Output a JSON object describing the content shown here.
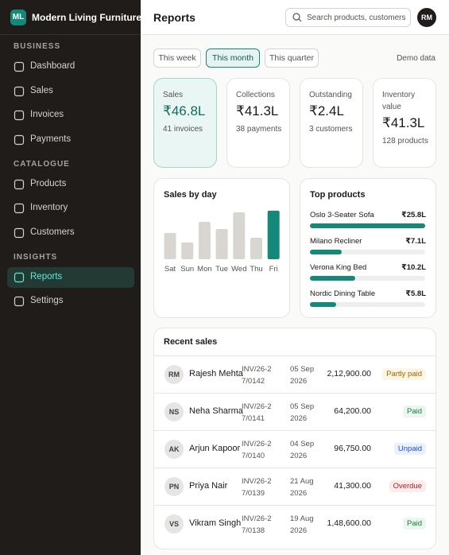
{
  "sidebar": {
    "logo": "ML",
    "brand": "Modern Living Furniture",
    "sections": [
      {
        "heading": "BUSINESS",
        "items": [
          {
            "label": "Dashboard"
          },
          {
            "label": "Sales"
          },
          {
            "label": "Invoices"
          },
          {
            "label": "Payments"
          }
        ]
      },
      {
        "heading": "CATALOGUE",
        "items": [
          {
            "label": "Products"
          },
          {
            "label": "Inventory"
          },
          {
            "label": "Customers"
          }
        ]
      },
      {
        "heading": "INSIGHTS",
        "items": [
          {
            "label": "Reports",
            "active": true
          },
          {
            "label": "Settings"
          }
        ]
      }
    ]
  },
  "header": {
    "title": "Reports",
    "search_placeholder": "Search products, customers",
    "avatar": "RM"
  },
  "filters": {
    "options": [
      {
        "label": "This week"
      },
      {
        "label": "This month",
        "selected": true
      },
      {
        "label": "This quarter"
      }
    ],
    "note": "Demo data"
  },
  "kpis": [
    {
      "label": "Sales",
      "value": "₹46.8L",
      "sub": "41 invoices",
      "highlight": true
    },
    {
      "label": "Collections",
      "value": "₹41.3L",
      "sub": "38 payments"
    },
    {
      "label": "Outstanding",
      "value": "₹2.4L",
      "sub": "3 customers"
    },
    {
      "label": "Inventory value",
      "value": "₹41.3L",
      "sub": "128 products"
    }
  ],
  "sales_by_day": {
    "title": "Sales by day",
    "categories": [
      "Sat",
      "Sun",
      "Mon",
      "Tue",
      "Wed",
      "Thu",
      "Fri"
    ],
    "values": [
      33,
      21,
      47,
      38,
      59,
      27,
      61
    ],
    "colors": [
      "#d9d5d0",
      "#d9d5d0",
      "#d9d5d0",
      "#d9d5d0",
      "#d9d5d0",
      "#d9d5d0",
      "#14897a"
    ]
  },
  "top_products": {
    "title": "Top products",
    "color": "#14897a",
    "items": [
      {
        "name": "Oslo 3-Seater Sofa",
        "value": {
          "value": 25.8,
          "label": "₹25.8L"
        }
      },
      {
        "name": "Milano Recliner",
        "value": {
          "value": 7.1,
          "label": "₹7.1L"
        }
      },
      {
        "name": "Verona King Bed",
        "value": {
          "value": 10.2,
          "label": "₹10.2L"
        }
      },
      {
        "name": "Nordic Dining Table",
        "value": {
          "value": 5.8,
          "label": "₹5.8L"
        }
      }
    ]
  },
  "recent_sales": {
    "title": "Recent sales",
    "rows": [
      {
        "initials": "RM",
        "name": "Rajesh Mehta",
        "invoice": "INV/26-27/0142",
        "date": "05 Sep 2026",
        "amount": "2,12,900.00",
        "status": "Partly paid",
        "status_color": "#a16207",
        "status_bg": "#fdf6e3"
      },
      {
        "initials": "NS",
        "name": "Neha Sharma",
        "invoice": "INV/26-27/0141",
        "date": "05 Sep 2026",
        "amount": "64,200.00",
        "status": "Paid",
        "status_color": "#15803d",
        "status_bg": "#eaf6ee"
      },
      {
        "initials": "AK",
        "name": "Arjun Kapoor",
        "invoice": "INV/26-27/0140",
        "date": "04 Sep 2026",
        "amount": "96,750.00",
        "status": "Unpaid",
        "status_color": "#1d4ed8",
        "status_bg": "#eaf1fb"
      },
      {
        "initials": "PN",
        "name": "Priya Nair",
        "invoice": "INV/26-27/0139",
        "date": "21 Aug 2026",
        "amount": "41,300.00",
        "status": "Overdue",
        "status_color": "#b91c1c",
        "status_bg": "#fcecec"
      },
      {
        "initials": "VS",
        "name": "Vikram Singh",
        "invoice": "INV/26-27/0138",
        "date": "19 Aug 2026",
        "amount": "1,48,600.00",
        "status": "Paid",
        "status_color": "#15803d",
        "status_bg": "#eaf6ee"
      }
    ]
  }
}
